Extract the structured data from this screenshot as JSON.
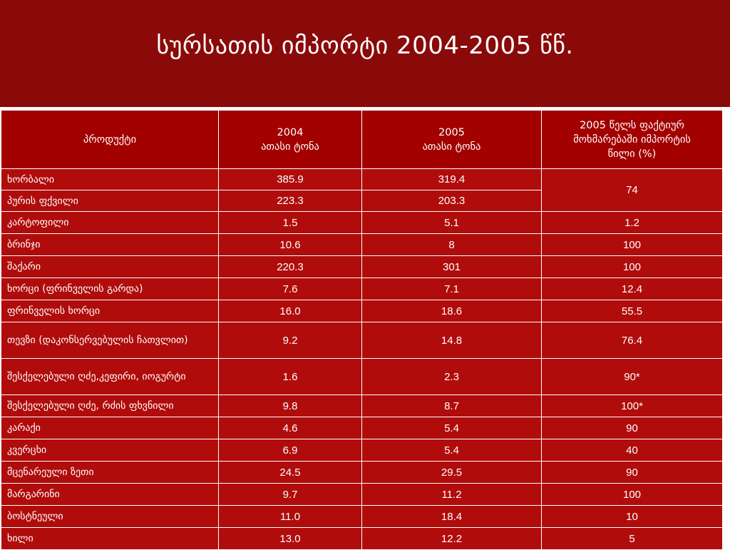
{
  "slide": {
    "title": "სურსათის  იმპორტი 2004-2005 წწ.",
    "colors": {
      "header_bg": "#8a0a0a",
      "table_bg": "#b00c0c",
      "header_row_bg": "#a30000",
      "text": "#ffffff"
    }
  },
  "table": {
    "headers": {
      "product": "პროდუქტი",
      "y2004_year": "2004",
      "y2004_unit": "ათასი ტონა",
      "y2005_year": "2005",
      "y2005_unit": "ათასი ტონა",
      "share_line1": "2005 წელს ფაქტიურ",
      "share_line2": "მოხმარებაში იმპორტის",
      "share_line3": "წილი (%)"
    },
    "rows": [
      {
        "name": "ხორბალი",
        "v2004": "385.9",
        "v2005": "319.4",
        "share": "74"
      },
      {
        "name": "პურის ფქვილი",
        "v2004": "223.3",
        "v2005": "203.3",
        "share": ""
      },
      {
        "name": "კარტოფილი",
        "v2004": "1.5",
        "v2005": "5.1",
        "share": "1.2"
      },
      {
        "name": "ბრინჯი",
        "v2004": "10.6",
        "v2005": "8",
        "share": "100"
      },
      {
        "name": "შაქარი",
        "v2004": "220.3",
        "v2005": "301",
        "share": "100"
      },
      {
        "name": "ხორცი (ფრინველის გარდა)",
        "v2004": "7.6",
        "v2005": "7.1",
        "share": "12.4"
      },
      {
        "name": "ფრინველის ხორცი",
        "v2004": "16.0",
        "v2005": "18.6",
        "share": "55.5"
      },
      {
        "name": "თევზი (დაკონსერვებულის ჩათვლით)",
        "v2004": "9.2",
        "v2005": "14.8",
        "share": "76.4"
      },
      {
        "name": "შესქელებული ღძე,კეფირი, იოგურტი",
        "v2004": "1.6",
        "v2005": "2.3",
        "share": "90*"
      },
      {
        "name": "შესქელებული ღძე, რძის ფხვნილი",
        "v2004": "9.8",
        "v2005": "8.7",
        "share": "100*"
      },
      {
        "name": "კარაქი",
        "v2004": "4.6",
        "v2005": "5.4",
        "share": "90"
      },
      {
        "name": "კვერცხი",
        "v2004": "6.9",
        "v2005": "5.4",
        "share": "40"
      },
      {
        "name": "მცენარეული ზეთი",
        "v2004": "24.5",
        "v2005": "29.5",
        "share": "90"
      },
      {
        "name": "მარგარინი",
        "v2004": "9.7",
        "v2005": "11.2",
        "share": "100"
      },
      {
        "name": "ბოსტნეული",
        "v2004": "11.0",
        "v2005": "18.4",
        "share": "10"
      },
      {
        "name": "ხილი",
        "v2004": "13.0",
        "v2005": "12.2",
        "share": "5"
      }
    ]
  }
}
